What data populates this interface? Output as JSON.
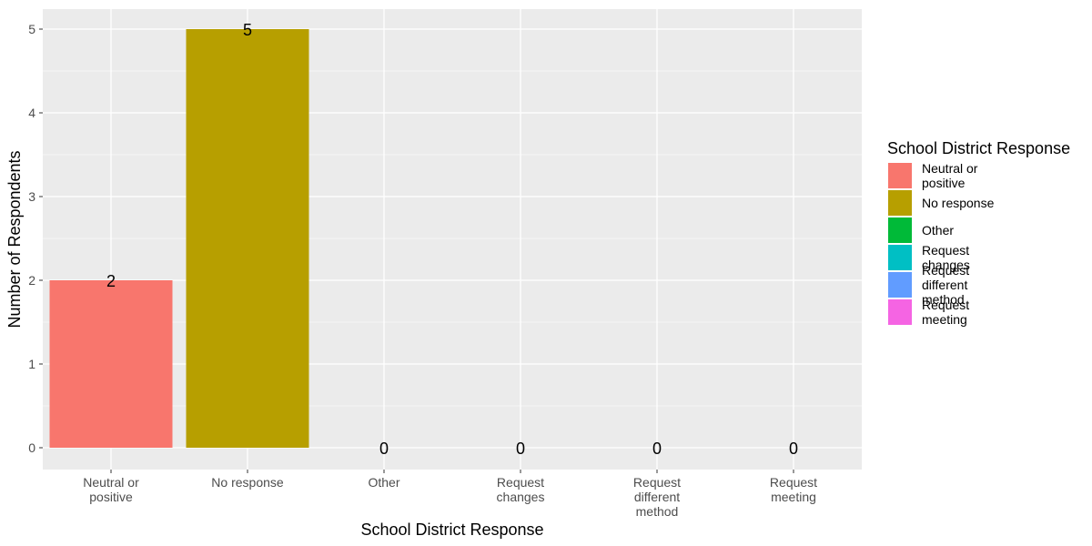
{
  "chart_data": {
    "type": "bar",
    "xlabel": "School District Response",
    "ylabel": "Number of Respondents",
    "categories": [
      "Neutral or positive",
      "No response",
      "Other",
      "Request changes",
      "Request different method",
      "Request meeting"
    ],
    "category_tick_lines": [
      [
        "Neutral or",
        "positive"
      ],
      [
        "No response"
      ],
      [
        "Other"
      ],
      [
        "Request",
        "changes"
      ],
      [
        "Request",
        "different",
        "method"
      ],
      [
        "Request",
        "meeting"
      ]
    ],
    "values": [
      2,
      5,
      0,
      0,
      0,
      0
    ],
    "data_labels": [
      "2",
      "5",
      "0",
      "0",
      "0",
      "0"
    ],
    "colors": [
      "#F8766D",
      "#B79F00",
      "#00BA38",
      "#00BFC4",
      "#619CFF",
      "#F564E3"
    ],
    "ylim": [
      0,
      5.25
    ],
    "yticks": [
      0,
      1,
      2,
      3,
      4,
      5
    ],
    "grid": true,
    "panel_background": "#EBEBEB",
    "legend": {
      "title": "School District Response",
      "position": "right",
      "entries": [
        [
          "Neutral or",
          "positive"
        ],
        [
          "No response"
        ],
        [
          "Other"
        ],
        [
          "Request",
          "changes"
        ],
        [
          "Request",
          "different",
          "method"
        ],
        [
          "Request",
          "meeting"
        ]
      ]
    }
  }
}
